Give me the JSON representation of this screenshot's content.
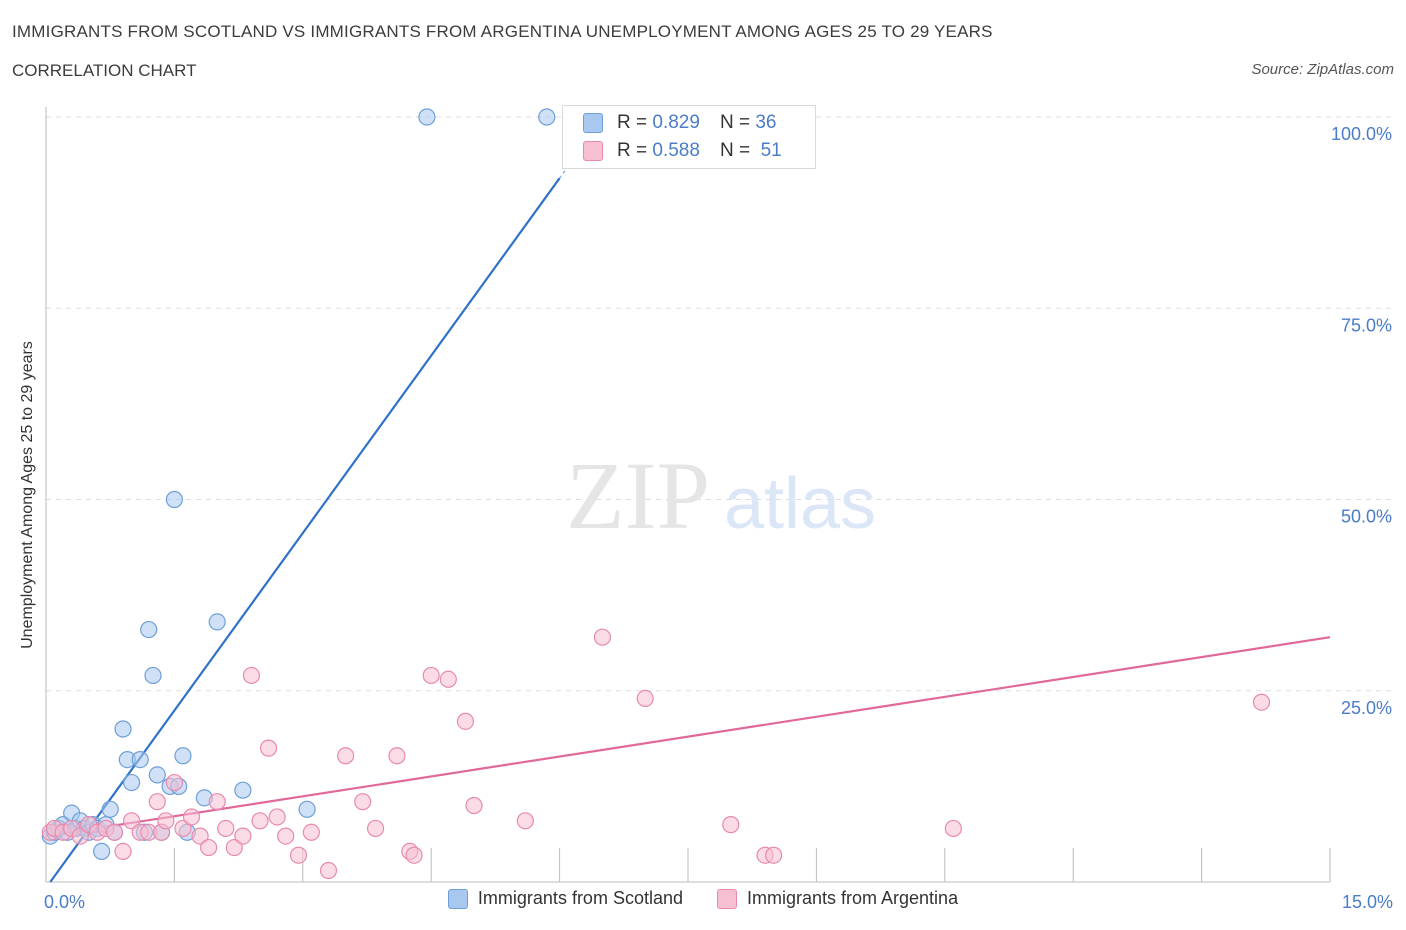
{
  "header": {
    "title": "IMMIGRANTS FROM SCOTLAND VS IMMIGRANTS FROM ARGENTINA UNEMPLOYMENT AMONG AGES 25 TO 29 YEARS",
    "subtitle": "CORRELATION CHART",
    "source": "Source: ZipAtlas.com"
  },
  "watermark": {
    "zip": "ZIP",
    "atlas": "atlas"
  },
  "stats": {
    "r_label": "R =",
    "n_label": "N =",
    "scotland": {
      "r": "0.829",
      "n": "36"
    },
    "argentina": {
      "r": "0.588",
      "n": "51"
    }
  },
  "legend": {
    "scotland": "Immigrants from Scotland",
    "argentina": "Immigrants from Argentina"
  },
  "colors": {
    "scotland_fill": "#a9c8f0",
    "scotland_stroke": "#6d9fd9",
    "scotland_line": "#2f72c9",
    "argentina_fill": "#f7bfd2",
    "argentina_stroke": "#e88aad",
    "argentina_line": "#e0689a",
    "tick_text": "#4a7cc9",
    "grid": "#dddddd",
    "axis": "#bbbbbb"
  },
  "chart_data": {
    "type": "scatter",
    "title": "IMMIGRANTS FROM SCOTLAND VS IMMIGRANTS FROM ARGENTINA UNEMPLOYMENT AMONG AGES 25 TO 29 YEARS",
    "xlabel": "",
    "ylabel": "Unemployment Among Ages 25 to 29 years",
    "xlim": [
      0,
      15
    ],
    "ylim": [
      0,
      100
    ],
    "x_tick_labels": [
      "0.0%",
      "15.0%"
    ],
    "y_tick_labels": [
      "25.0%",
      "50.0%",
      "75.0%",
      "100.0%"
    ],
    "y_ticks": [
      25,
      50,
      75,
      100
    ],
    "grid": true,
    "series": [
      {
        "name": "Immigrants from Scotland",
        "x": [
          0.05,
          0.1,
          0.15,
          0.2,
          0.25,
          0.3,
          0.35,
          0.4,
          0.45,
          0.5,
          0.55,
          0.6,
          0.65,
          0.7,
          0.75,
          0.8,
          0.9,
          0.95,
          1.0,
          1.1,
          1.15,
          1.2,
          1.25,
          1.3,
          1.35,
          1.45,
          1.5,
          1.55,
          1.6,
          1.65,
          1.85,
          2.0,
          2.3,
          3.05,
          4.45,
          5.85
        ],
        "y": [
          6,
          6.5,
          7,
          7.5,
          6.5,
          9,
          7,
          8,
          7,
          6.5,
          7.5,
          7,
          4,
          7.5,
          9.5,
          6.5,
          20,
          16,
          13,
          16,
          6.5,
          33,
          27,
          14,
          6.5,
          12.5,
          50,
          12.5,
          16.5,
          6.5,
          11,
          34,
          12,
          9.5,
          100,
          100
        ]
      },
      {
        "name": "Immigrants from Argentina",
        "x": [
          0.05,
          0.1,
          0.2,
          0.3,
          0.4,
          0.5,
          0.6,
          0.7,
          0.8,
          0.9,
          1.0,
          1.1,
          1.2,
          1.3,
          1.35,
          1.4,
          1.5,
          1.6,
          1.7,
          1.8,
          1.9,
          2.0,
          2.1,
          2.2,
          2.3,
          2.4,
          2.5,
          2.6,
          2.7,
          2.8,
          2.95,
          3.1,
          3.3,
          3.5,
          3.7,
          3.85,
          4.1,
          4.25,
          4.3,
          4.5,
          4.7,
          4.9,
          5.0,
          5.6,
          6.5,
          7.0,
          8.0,
          8.4,
          8.5,
          10.6,
          14.2
        ],
        "y": [
          6.5,
          7,
          6.5,
          7,
          6,
          7.5,
          6.5,
          7,
          6.5,
          4,
          8,
          6.5,
          6.5,
          10.5,
          6.5,
          8,
          13,
          7,
          8.5,
          6,
          4.5,
          10.5,
          7,
          4.5,
          6,
          27,
          8,
          17.5,
          8.5,
          6,
          3.5,
          6.5,
          1.5,
          16.5,
          10.5,
          7,
          16.5,
          4,
          3.5,
          27,
          26.5,
          21,
          10,
          8,
          32,
          24,
          7.5,
          3.5,
          3.5,
          7,
          23.5
        ]
      }
    ],
    "trend_lines": [
      {
        "name": "Immigrants from Scotland",
        "x0": 0.05,
        "y0": 0,
        "x1": 6.0,
        "y1": 92
      },
      {
        "name": "Immigrants from Argentina",
        "x0": 0.0,
        "y0": 6,
        "x1": 15.0,
        "y1": 32
      }
    ]
  }
}
